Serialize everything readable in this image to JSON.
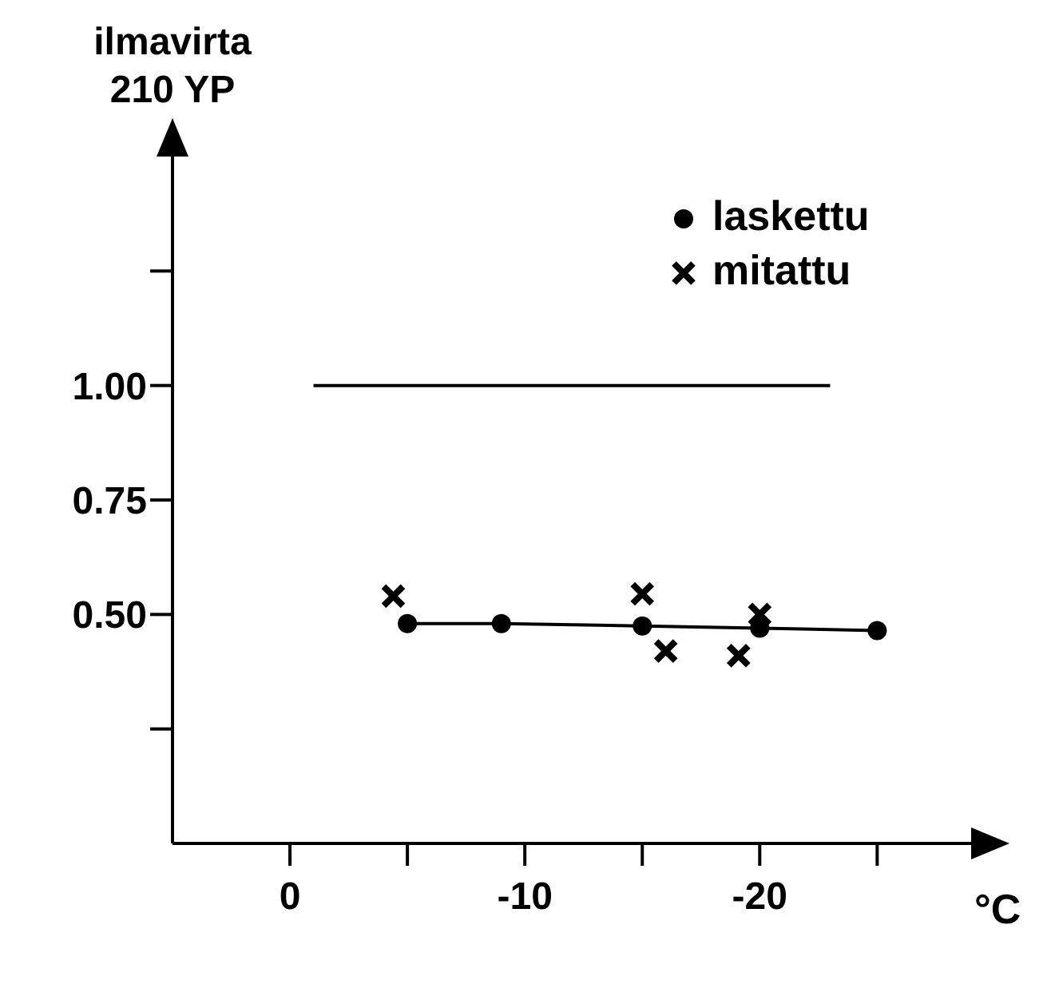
{
  "chart_data": {
    "type": "scatter",
    "ylabel": "ilmavirta\n210 YP",
    "xlabel": "°C",
    "xlim": [
      5,
      -29
    ],
    "ylim": [
      0,
      1.5
    ],
    "xticks": [
      0,
      {
        "value": -5,
        "label": null
      },
      -10,
      {
        "value": -15,
        "label": null
      },
      -20,
      {
        "value": -25,
        "label": null
      }
    ],
    "yticks": [
      {
        "value": 0.25,
        "label": null
      },
      {
        "value": 0.5,
        "label": "0.50"
      },
      {
        "value": 0.75,
        "label": "0.75"
      },
      {
        "value": 1,
        "label": "1.00"
      },
      {
        "value": 1.25,
        "label": null
      }
    ],
    "legend": "top right",
    "series": [
      {
        "name": "laskettu",
        "type": "line",
        "marker": "circle",
        "color": "#000000",
        "x": [
          -5,
          -9,
          -15,
          -20,
          -25
        ],
        "values": [
          0.48,
          0.48,
          0.475,
          0.47,
          0.465
        ]
      },
      {
        "name": "mitattu",
        "marker": "cross",
        "color": "#000000",
        "x": [
          -4.4,
          -15,
          -16,
          -19.1,
          -20
        ],
        "values": [
          0.54,
          0.545,
          0.42,
          0.41,
          0.5
        ]
      },
      {
        "type": "line",
        "marker": "none",
        "color": "#000000",
        "x": [
          -1,
          -23
        ],
        "values": [
          1,
          1
        ]
      }
    ]
  }
}
